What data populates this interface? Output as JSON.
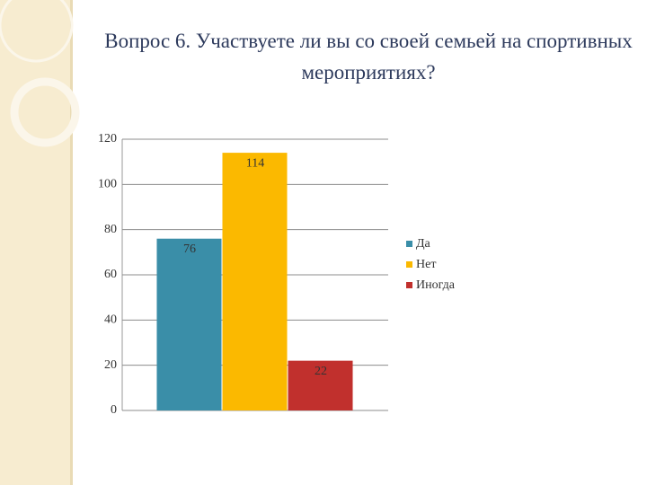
{
  "chart_data": {
    "type": "bar",
    "title": "Вопрос 6.  Участвуете ли вы со своей семьей на спортивных мероприятиях?",
    "categories": [
      null
    ],
    "series": [
      {
        "name": "Да",
        "color": "#3a8ea8",
        "values": [
          76
        ]
      },
      {
        "name": "Нет",
        "color": "#fbb900",
        "values": [
          114
        ]
      },
      {
        "name": "Иногда",
        "color": "#c1302d",
        "values": [
          22
        ]
      }
    ],
    "ylim": [
      0,
      120
    ],
    "yticks": [
      0,
      20,
      40,
      60,
      80,
      100,
      120
    ],
    "grid": true,
    "legend": "right"
  }
}
